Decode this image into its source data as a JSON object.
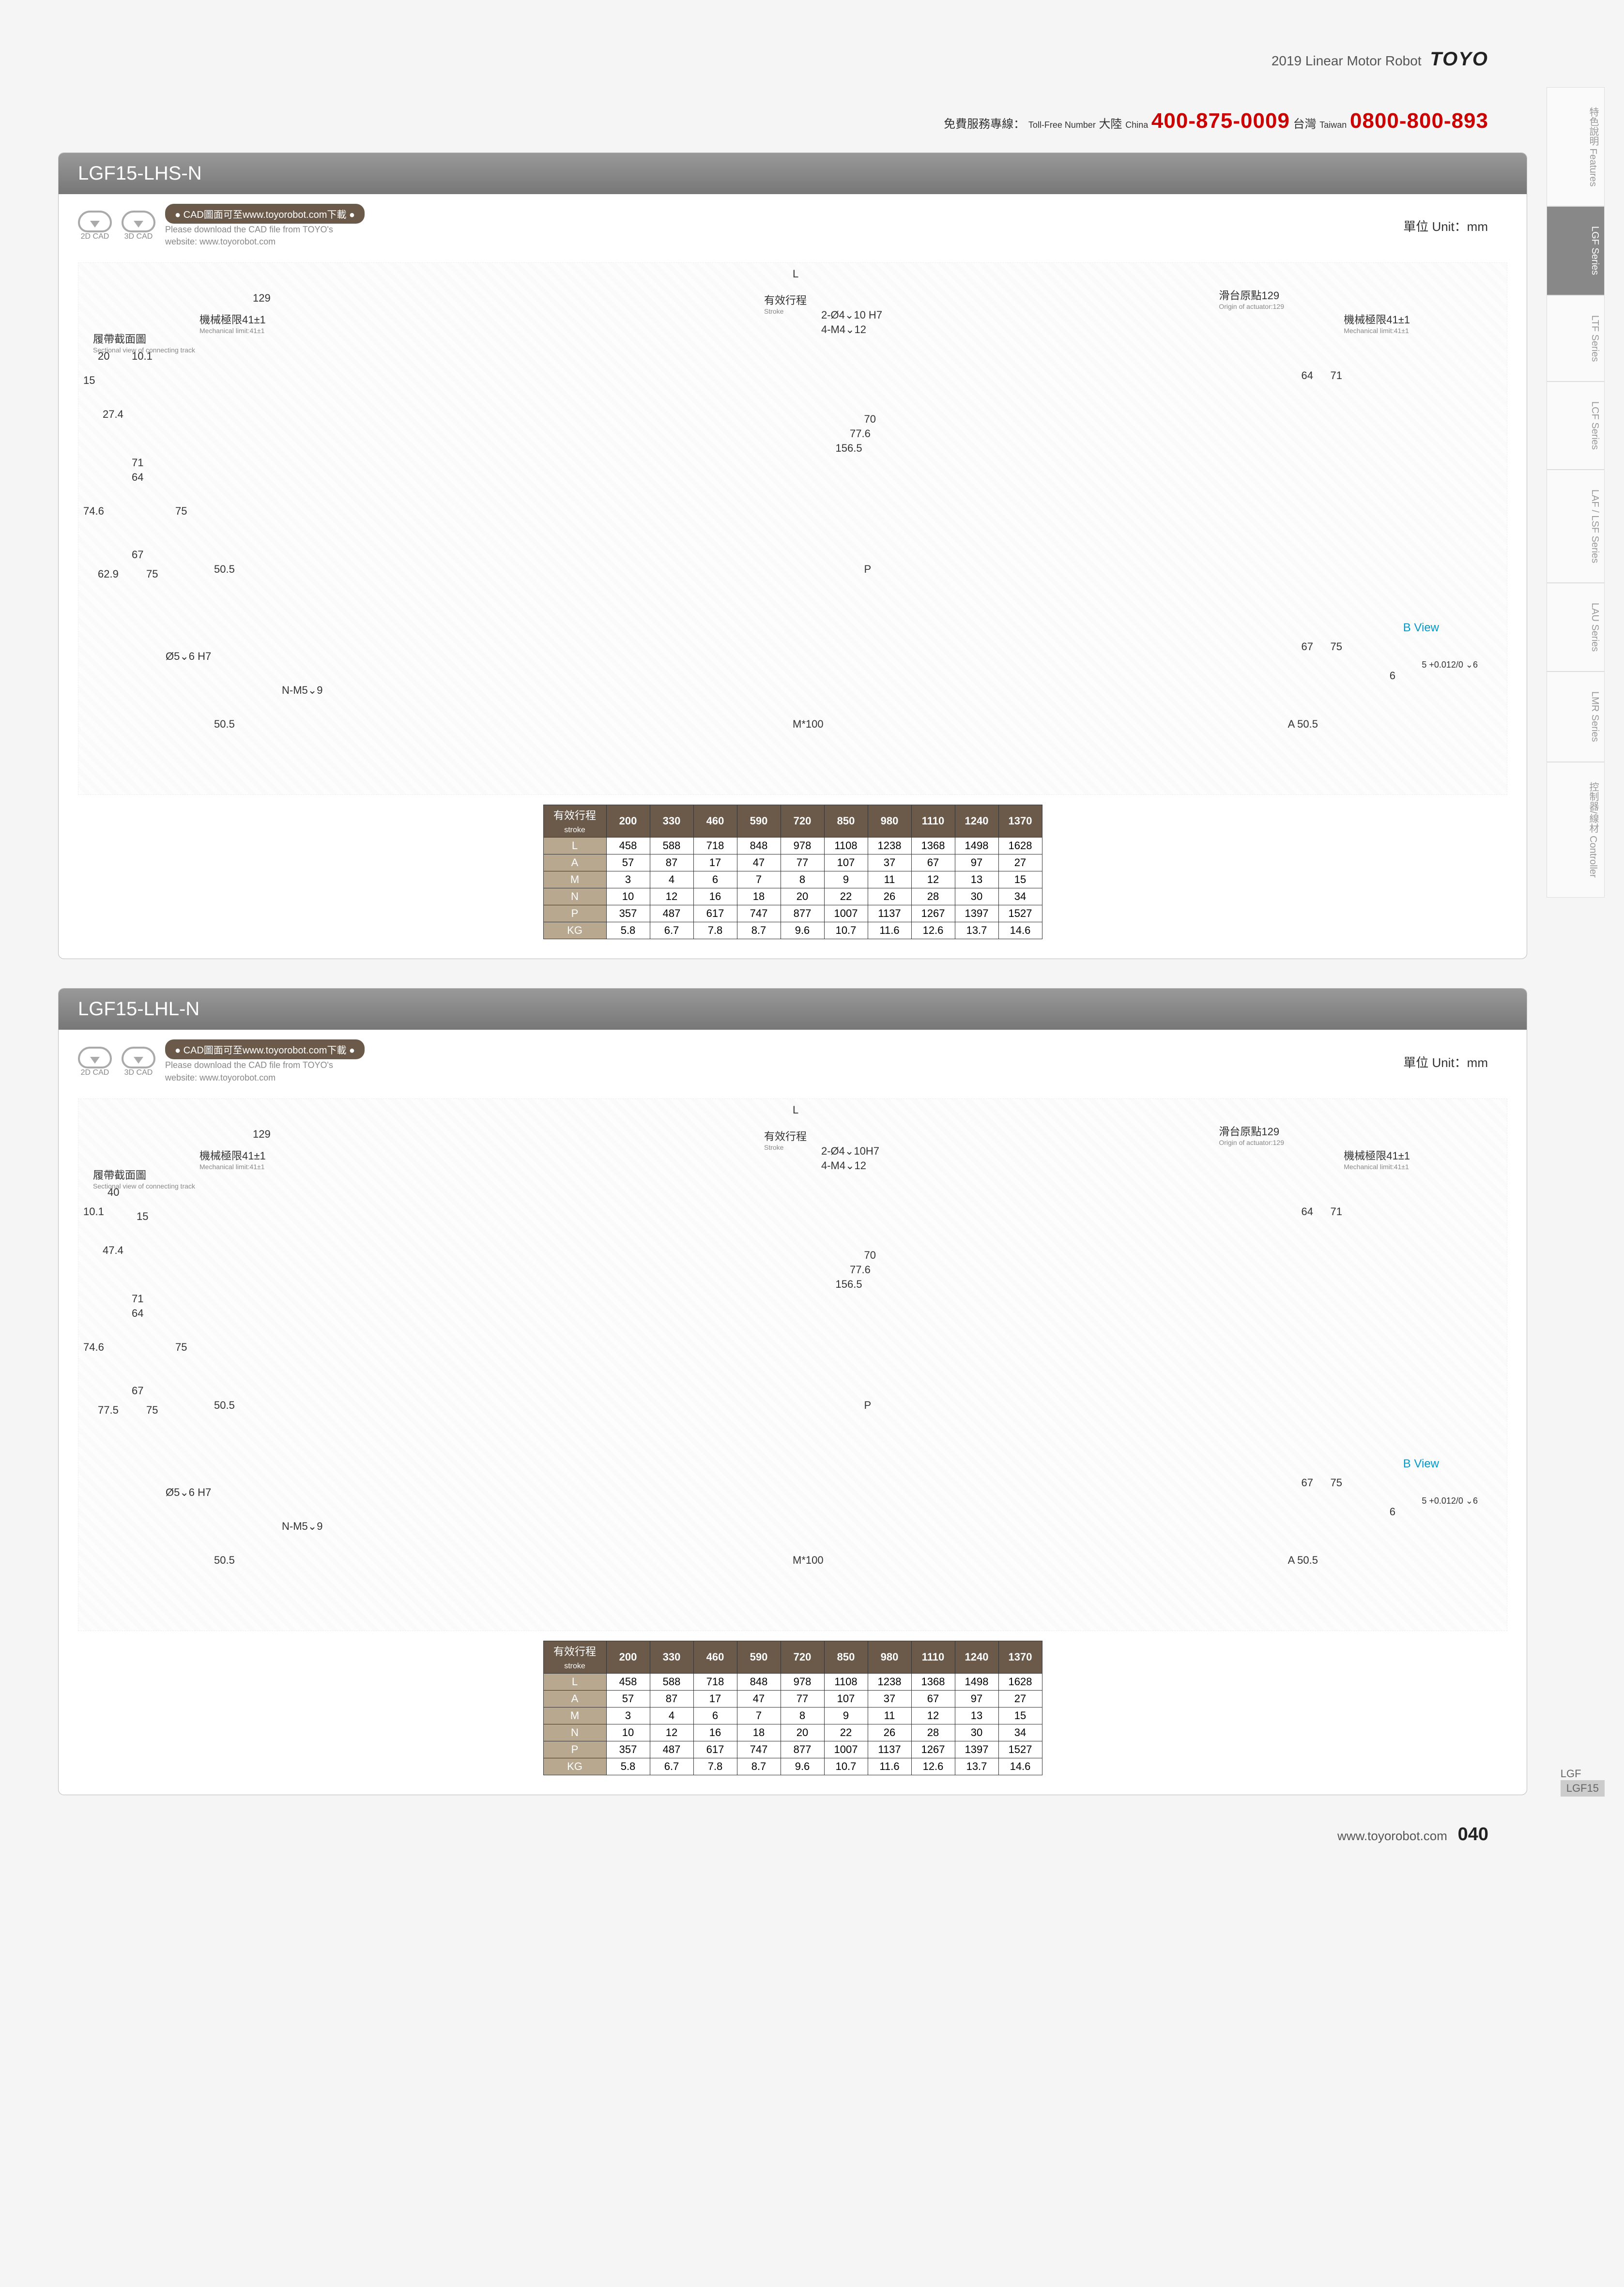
{
  "header": {
    "year_title": "2019  Linear Motor Robot",
    "logo": "TOYO"
  },
  "hotline": {
    "label_cn": "免費服務專線：",
    "label_en": "Toll-Free Number",
    "china_label": "大陸",
    "china_sub": "China",
    "china_num": "400-875-0009",
    "taiwan_label": "台灣",
    "taiwan_sub": "Taiwan",
    "taiwan_num": "0800-800-893"
  },
  "side_tabs": [
    "特色說明\nFeatures",
    "LGF Series",
    "LTF Series",
    "LCF Series",
    "LAF / LSF Series",
    "LAU Series",
    "LMR Series",
    "控制器/線材\nController"
  ],
  "side_active_index": 1,
  "side_index": {
    "group": "LGF",
    "model": "LGF15"
  },
  "unit_label": "單位 Unit：mm",
  "cad": {
    "badge": "● CAD圖面可至www.toyorobot.com下載 ●",
    "line1": "Please download the CAD file from TOYO's",
    "line2": "website: www.toyorobot.com",
    "icon1_label": "2D CAD",
    "icon2_label": "3D CAD"
  },
  "sections": [
    {
      "title": "LGF15-LHS-N",
      "labels": {
        "L": "L",
        "dim129": "129",
        "stroke_cn": "有效行程",
        "stroke_en": "Stroke",
        "origin_cn": "滑台原點129",
        "origin_en": "Origin of actuator:129",
        "mechlimit_cn": "機械極限41±1",
        "mechlimit_en": "Mechanical limit:41±1",
        "sectional_cn": "履帶截面圖",
        "sectional_en": "Sectional view of connecting track",
        "hole1": "2-Ø4⌄10 H7",
        "hole2": "4-M4⌄12",
        "d20": "20",
        "d10_1": "10.1",
        "d15": "15",
        "d27_4": "27.4",
        "d64": "64",
        "d71": "71",
        "d70": "70",
        "d77_6": "77.6",
        "d156_5": "156.5",
        "d74_6": "74.6",
        "d67": "67",
        "d75": "75",
        "d62_9": "62.9",
        "d50_5": "50.5",
        "P": "P",
        "hole3": "Ø5⌄6 H7",
        "hole4": "N-M5⌄9",
        "M100": "M*100",
        "A50_5": "A 50.5",
        "bview": "B View",
        "d6": "6",
        "tol": "5 +0.012/0 ⌄6"
      }
    },
    {
      "title": "LGF15-LHL-N",
      "labels": {
        "L": "L",
        "dim129": "129",
        "stroke_cn": "有效行程",
        "stroke_en": "Stroke",
        "origin_cn": "滑台原點129",
        "origin_en": "Origin of actuator:129",
        "mechlimit_cn": "機械極限41±1",
        "mechlimit_en": "Mechanical limit:41±1",
        "sectional_cn": "履帶截面圖",
        "sectional_en": "Sectional view of connecting track",
        "hole1": "2-Ø4⌄10H7",
        "hole2": "4-M4⌄12",
        "d40": "40",
        "d10_1": "10.1",
        "d15": "15",
        "d47_4": "47.4",
        "d64": "64",
        "d71": "71",
        "d70": "70",
        "d77_6": "77.6",
        "d156_5": "156.5",
        "d74_6": "74.6",
        "d67": "67",
        "d75": "75",
        "d77_5": "77.5",
        "d50_5": "50.5",
        "P": "P",
        "hole3": "Ø5⌄6 H7",
        "hole4": "N-M5⌄9",
        "M100": "M*100",
        "A50_5": "A 50.5",
        "bview": "B View",
        "d6": "6",
        "tol": "5 +0.012/0 ⌄6"
      }
    }
  ],
  "table": {
    "header_label_cn": "有效行程",
    "header_label_en": "stroke",
    "strokes": [
      "200",
      "330",
      "460",
      "590",
      "720",
      "850",
      "980",
      "1110",
      "1240",
      "1370"
    ],
    "rows": [
      {
        "k": "L",
        "v": [
          "458",
          "588",
          "718",
          "848",
          "978",
          "1108",
          "1238",
          "1368",
          "1498",
          "1628"
        ]
      },
      {
        "k": "A",
        "v": [
          "57",
          "87",
          "17",
          "47",
          "77",
          "107",
          "37",
          "67",
          "97",
          "27"
        ]
      },
      {
        "k": "M",
        "v": [
          "3",
          "4",
          "6",
          "7",
          "8",
          "9",
          "11",
          "12",
          "13",
          "15"
        ]
      },
      {
        "k": "N",
        "v": [
          "10",
          "12",
          "16",
          "18",
          "20",
          "22",
          "26",
          "28",
          "30",
          "34"
        ]
      },
      {
        "k": "P",
        "v": [
          "357",
          "487",
          "617",
          "747",
          "877",
          "1007",
          "1137",
          "1267",
          "1397",
          "1527"
        ]
      },
      {
        "k": "KG",
        "v": [
          "5.8",
          "6.7",
          "7.8",
          "8.7",
          "9.6",
          "10.7",
          "11.6",
          "12.6",
          "13.7",
          "14.6"
        ]
      }
    ]
  },
  "footer": {
    "url": "www.toyorobot.com",
    "page": "040"
  }
}
